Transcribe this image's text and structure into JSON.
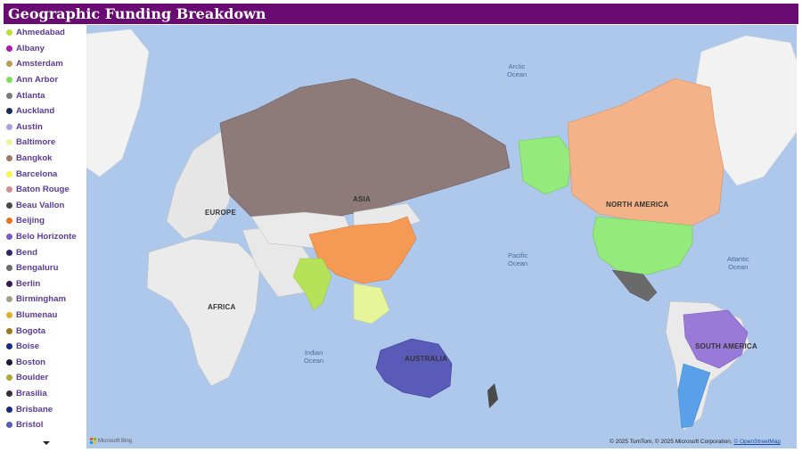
{
  "header": {
    "title": "Geographic Funding Breakdown"
  },
  "legend": {
    "items": [
      {
        "label": "Ahmedabad",
        "color": "#b6e234"
      },
      {
        "label": "Albany",
        "color": "#b01ab0"
      },
      {
        "label": "Amsterdam",
        "color": "#b79c52"
      },
      {
        "label": "Ann Arbor",
        "color": "#7ee05a"
      },
      {
        "label": "Atlanta",
        "color": "#7a7a7a"
      },
      {
        "label": "Auckland",
        "color": "#1a2a5a"
      },
      {
        "label": "Austin",
        "color": "#a9a0e6"
      },
      {
        "label": "Baltimore",
        "color": "#e6f59a"
      },
      {
        "label": "Bangkok",
        "color": "#a07a6a"
      },
      {
        "label": "Barcelona",
        "color": "#f5f54a"
      },
      {
        "label": "Baton Rouge",
        "color": "#d49090"
      },
      {
        "label": "Beau Vallon",
        "color": "#4a4a4a"
      },
      {
        "label": "Beijing",
        "color": "#f0701a"
      },
      {
        "label": "Belo Horizonte",
        "color": "#7a5ac8"
      },
      {
        "label": "Bend",
        "color": "#2a2a6a"
      },
      {
        "label": "Bengaluru",
        "color": "#6a6a6a"
      },
      {
        "label": "Berlin",
        "color": "#3a1a4a"
      },
      {
        "label": "Birmingham",
        "color": "#a0a08a"
      },
      {
        "label": "Blumenau",
        "color": "#e0b020"
      },
      {
        "label": "Bogota",
        "color": "#9a7a1a"
      },
      {
        "label": "Boise",
        "color": "#1a2a8a"
      },
      {
        "label": "Boston",
        "color": "#1a1a3a"
      },
      {
        "label": "Boulder",
        "color": "#b0a830"
      },
      {
        "label": "Brasilia",
        "color": "#3a2a3a"
      },
      {
        "label": "Brisbane",
        "color": "#1a2a7a"
      },
      {
        "label": "Bristol",
        "color": "#5a5ac0"
      }
    ]
  },
  "map": {
    "ocean_labels": {
      "arctic": "Arctic\nOcean",
      "pacific": "Pacific\nOcean",
      "atlantic": "Atlantic\nOcean",
      "indian": "Indian\nOcean"
    },
    "region_labels": {
      "europe": "EUROPE",
      "asia": "ASIA",
      "africa": "AFRICA",
      "australia": "AUSTRALIA",
      "north_america": "NORTH AMERICA",
      "south_america": "SOUTH AMERICA"
    },
    "attribution": {
      "bing": "Microsoft Bing",
      "copyright": "© 2025 TomTom, © 2025 Microsoft Corporation,",
      "osm_link": "© OpenStreetMap"
    }
  }
}
